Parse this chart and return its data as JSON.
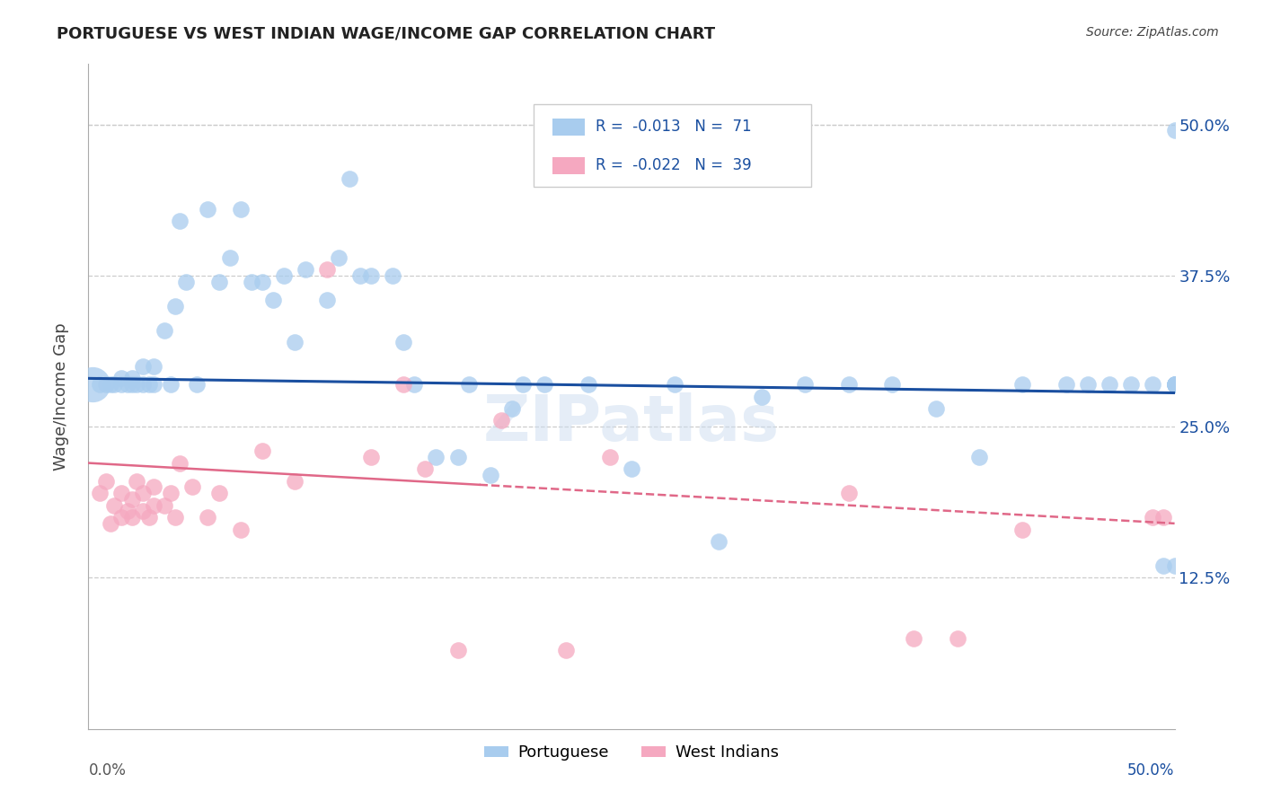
{
  "title": "PORTUGUESE VS WEST INDIAN WAGE/INCOME GAP CORRELATION CHART",
  "source": "Source: ZipAtlas.com",
  "ylabel": "Wage/Income Gap",
  "yticks": [
    0.125,
    0.25,
    0.375,
    0.5
  ],
  "ytick_labels": [
    "12.5%",
    "25.0%",
    "37.5%",
    "50.0%"
  ],
  "xlim": [
    0.0,
    0.5
  ],
  "ylim": [
    0.0,
    0.55
  ],
  "blue_R": "-0.013",
  "blue_N": "71",
  "pink_R": "-0.022",
  "pink_N": "39",
  "blue_color": "#A8CCEE",
  "pink_color": "#F5A8C0",
  "blue_line_color": "#1A4FA0",
  "pink_line_color": "#E06888",
  "watermark": "ZIPatlas",
  "portuguese_x": [
    0.005,
    0.008,
    0.01,
    0.012,
    0.015,
    0.015,
    0.018,
    0.02,
    0.02,
    0.022,
    0.025,
    0.025,
    0.028,
    0.03,
    0.03,
    0.035,
    0.038,
    0.04,
    0.042,
    0.045,
    0.05,
    0.055,
    0.06,
    0.065,
    0.07,
    0.075,
    0.08,
    0.085,
    0.09,
    0.095,
    0.1,
    0.11,
    0.115,
    0.12,
    0.125,
    0.13,
    0.14,
    0.145,
    0.15,
    0.16,
    0.17,
    0.175,
    0.185,
    0.195,
    0.2,
    0.21,
    0.23,
    0.25,
    0.27,
    0.29,
    0.31,
    0.33,
    0.35,
    0.37,
    0.39,
    0.41,
    0.43,
    0.45,
    0.46,
    0.47,
    0.48,
    0.49,
    0.495,
    0.5,
    0.5,
    0.5,
    0.5,
    0.5,
    0.5,
    0.5,
    0.5
  ],
  "portuguese_y": [
    0.285,
    0.285,
    0.285,
    0.285,
    0.285,
    0.29,
    0.285,
    0.285,
    0.29,
    0.285,
    0.285,
    0.3,
    0.285,
    0.285,
    0.3,
    0.33,
    0.285,
    0.35,
    0.42,
    0.37,
    0.285,
    0.43,
    0.37,
    0.39,
    0.43,
    0.37,
    0.37,
    0.355,
    0.375,
    0.32,
    0.38,
    0.355,
    0.39,
    0.455,
    0.375,
    0.375,
    0.375,
    0.32,
    0.285,
    0.225,
    0.225,
    0.285,
    0.21,
    0.265,
    0.285,
    0.285,
    0.285,
    0.215,
    0.285,
    0.155,
    0.275,
    0.285,
    0.285,
    0.285,
    0.265,
    0.225,
    0.285,
    0.285,
    0.285,
    0.285,
    0.285,
    0.285,
    0.135,
    0.285,
    0.285,
    0.285,
    0.285,
    0.285,
    0.285,
    0.135,
    0.495
  ],
  "west_indian_x": [
    0.005,
    0.008,
    0.01,
    0.012,
    0.015,
    0.015,
    0.018,
    0.02,
    0.02,
    0.022,
    0.025,
    0.025,
    0.028,
    0.03,
    0.03,
    0.035,
    0.038,
    0.04,
    0.042,
    0.048,
    0.055,
    0.06,
    0.07,
    0.08,
    0.095,
    0.11,
    0.13,
    0.145,
    0.155,
    0.17,
    0.19,
    0.22,
    0.24,
    0.35,
    0.38,
    0.4,
    0.43,
    0.49,
    0.495
  ],
  "west_indian_y": [
    0.195,
    0.205,
    0.17,
    0.185,
    0.175,
    0.195,
    0.18,
    0.175,
    0.19,
    0.205,
    0.18,
    0.195,
    0.175,
    0.185,
    0.2,
    0.185,
    0.195,
    0.175,
    0.22,
    0.2,
    0.175,
    0.195,
    0.165,
    0.23,
    0.205,
    0.38,
    0.225,
    0.285,
    0.215,
    0.065,
    0.255,
    0.065,
    0.225,
    0.195,
    0.075,
    0.075,
    0.165,
    0.175,
    0.175
  ],
  "blue_line_y0": 0.29,
  "blue_line_y1": 0.278,
  "pink_line_x_solid_end": 0.18,
  "pink_line_y0": 0.22,
  "pink_line_y1": 0.17
}
